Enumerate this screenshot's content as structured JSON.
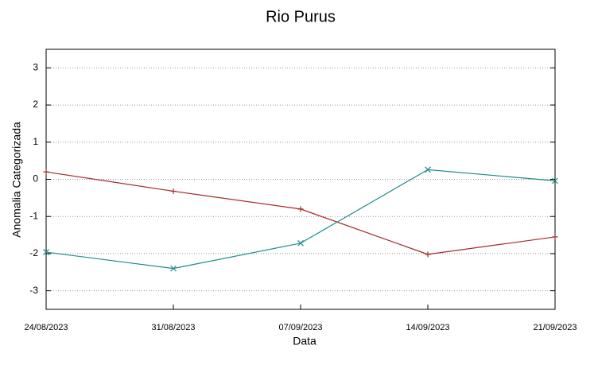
{
  "chart_data": {
    "type": "line",
    "title": "Rio Purus",
    "x_label": "Data",
    "y_label": "Anomalia Categorizada",
    "categories": [
      "24/08/2023",
      "31/08/2023",
      "07/09/2023",
      "14/09/2023",
      "21/09/2023"
    ],
    "series": [
      {
        "color": "#a52a2a",
        "marker": "plus",
        "values": [
          0.2,
          -0.32,
          -0.8,
          -2.02,
          -1.55
        ]
      },
      {
        "color": "#1f8a8a",
        "marker": "cross",
        "values": [
          -1.96,
          -2.4,
          -1.72,
          0.26,
          -0.04
        ]
      }
    ],
    "ylim": [
      -3.5,
      3.5
    ],
    "yticks": [
      -3,
      -2,
      -1,
      0,
      1,
      2,
      3
    ],
    "grid": true
  }
}
